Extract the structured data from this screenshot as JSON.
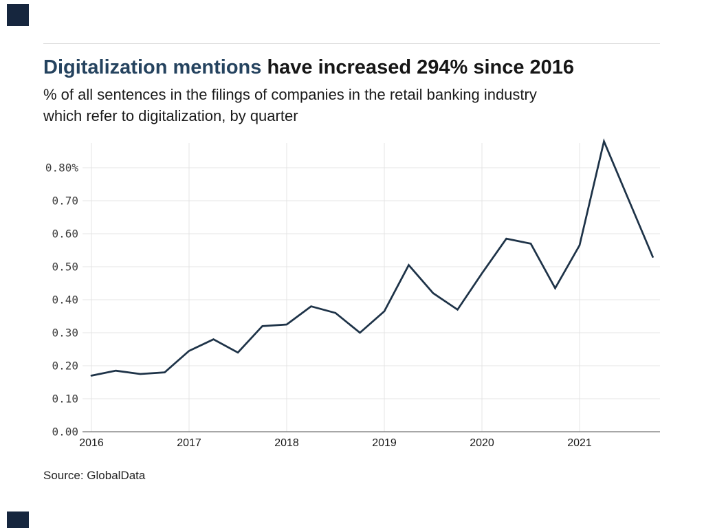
{
  "branding": {
    "logo_square_color": "#16263e"
  },
  "header": {
    "title_accent": "Digitalization mentions",
    "title_rest": " have increased 294% since 2016",
    "subtitle_lines": [
      "% of all sentences in the filings of companies in the retail banking industry",
      "which refer to digitalization, by quarter"
    ]
  },
  "chart_data": {
    "type": "line",
    "title": "Digitalization mentions have increased 294% since 2016",
    "subtitle": "% of all sentences in the filings of companies in the retail banking industry which refer to digitalization, by quarter",
    "xlabel": "",
    "ylabel": "",
    "x": [
      "2016 Q1",
      "2016 Q2",
      "2016 Q3",
      "2016 Q4",
      "2017 Q1",
      "2017 Q2",
      "2017 Q3",
      "2017 Q4",
      "2018 Q1",
      "2018 Q2",
      "2018 Q3",
      "2018 Q4",
      "2019 Q1",
      "2019 Q2",
      "2019 Q3",
      "2019 Q4",
      "2020 Q1",
      "2020 Q2",
      "2020 Q3",
      "2020 Q4",
      "2021 Q1",
      "2021 Q2",
      "2021 Q3",
      "2021 Q4"
    ],
    "values": [
      0.17,
      0.185,
      0.175,
      0.18,
      0.245,
      0.28,
      0.24,
      0.32,
      0.325,
      0.38,
      0.36,
      0.3,
      0.365,
      0.505,
      0.42,
      0.37,
      0.48,
      0.585,
      0.57,
      0.435,
      0.565,
      0.88,
      0.705,
      0.53
    ],
    "x_year_ticks": [
      "2016",
      "2017",
      "2018",
      "2019",
      "2020",
      "2021"
    ],
    "y_tick_labels": [
      "0.80%",
      "0.70",
      "0.60",
      "0.50",
      "0.40",
      "0.30",
      "0.20",
      "0.10",
      "0.00"
    ],
    "y_tick_values": [
      0.8,
      0.7,
      0.6,
      0.5,
      0.4,
      0.3,
      0.2,
      0.1,
      0.0
    ],
    "ylim": [
      0,
      0.875
    ],
    "grid": "both",
    "legend": "none",
    "line_color": "#1e3348",
    "grid_color": "#e4e4e4",
    "axis_color": "#8a8a8a",
    "tick_label_color": "#3c3c3c",
    "x_label_color": "#1a1a1a",
    "title_accent_color": "#25435f"
  },
  "footer": {
    "source": "Source: GlobalData"
  }
}
